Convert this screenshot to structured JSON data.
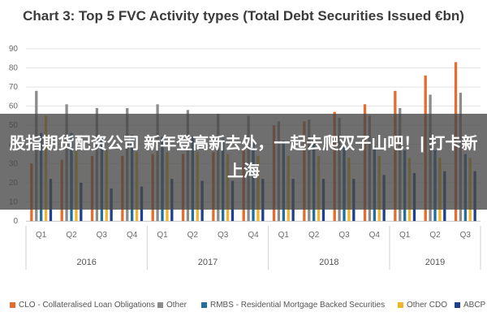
{
  "chart_data": {
    "type": "bar",
    "title": "Chart 3: Top 5 FVC Activity types (Total Debt Securities Issued €bn)",
    "xlabel": "",
    "ylabel": "",
    "ylim": [
      0,
      90
    ],
    "yticks": [
      "0",
      "10",
      "20",
      "30",
      "40",
      "50",
      "60",
      "70",
      "80",
      "90"
    ],
    "grid": true,
    "legend_position": "bottom",
    "categories": [
      "Q1",
      "Q2",
      "Q3",
      "Q4",
      "Q1",
      "Q2",
      "Q3",
      "Q4",
      "Q1",
      "Q2",
      "Q3",
      "Q4",
      "Q1",
      "Q2",
      "Q3"
    ],
    "years": [
      {
        "label": "2016",
        "span": 4
      },
      {
        "label": "2017",
        "span": 4
      },
      {
        "label": "2018",
        "span": 4
      },
      {
        "label": "2019",
        "span": 3
      }
    ],
    "series": [
      {
        "name": "CLO - Collateralised Loan Obligations",
        "color": "#e36c2e",
        "values": [
          30,
          32,
          34,
          34,
          35,
          35,
          36,
          38,
          50,
          52,
          57,
          61,
          68,
          76,
          83
        ]
      },
      {
        "name": "Other",
        "color": "#8c8c8c",
        "values": [
          68,
          61,
          59,
          59,
          61,
          58,
          56,
          55,
          52,
          53,
          54,
          55,
          59,
          66,
          67
        ]
      },
      {
        "name": "RMBS - Residential Mortgage Backed Securities",
        "color": "#1f6f9f",
        "values": [
          46,
          46,
          44,
          45,
          44,
          44,
          43,
          42,
          42,
          41,
          39,
          39,
          37,
          37,
          35
        ]
      },
      {
        "name": "Other CDO",
        "color": "#f0b52c",
        "values": [
          55,
          37,
          37,
          36,
          36,
          36,
          35,
          34,
          34,
          34,
          33,
          34,
          33,
          33,
          33
        ]
      },
      {
        "name": "ABCP",
        "color": "#1f3f8f",
        "values": [
          22,
          20,
          17,
          18,
          22,
          21,
          21,
          22,
          22,
          22,
          22,
          24,
          25,
          26,
          26
        ]
      }
    ]
  },
  "overlay": {
    "text": "股指期货配资公司 新年登高新去处，一起去爬双子山吧！| 打卡新上海"
  }
}
